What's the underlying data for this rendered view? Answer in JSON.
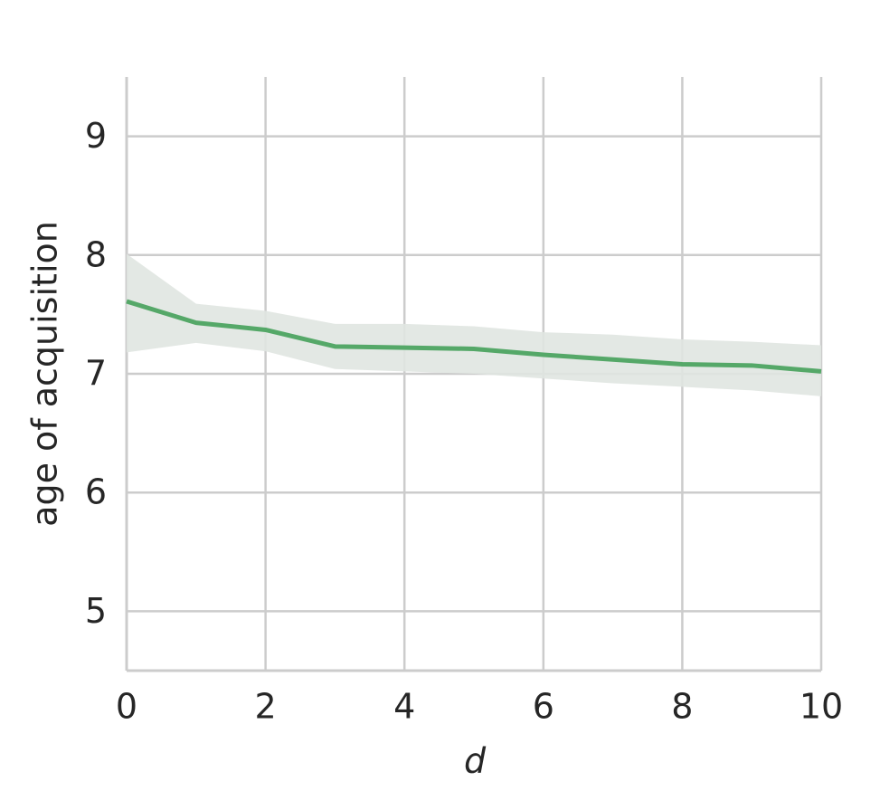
{
  "chart_data": {
    "type": "line",
    "xlabel": "d",
    "ylabel": "age of acquisition",
    "x": [
      0,
      1,
      2,
      3,
      4,
      5,
      6,
      7,
      8,
      9,
      10
    ],
    "values": [
      7.61,
      7.43,
      7.37,
      7.23,
      7.22,
      7.21,
      7.16,
      7.12,
      7.08,
      7.07,
      7.02
    ],
    "band": {
      "upper": [
        8.01,
        7.59,
        7.53,
        7.42,
        7.42,
        7.4,
        7.35,
        7.33,
        7.29,
        7.27,
        7.24
      ],
      "lower": [
        7.18,
        7.26,
        7.19,
        7.04,
        7.02,
        7.0,
        6.96,
        6.92,
        6.89,
        6.86,
        6.81
      ]
    },
    "color": "#55a868",
    "band_color": "#e0e5e1",
    "xlim": [
      0,
      10
    ],
    "xticks": [
      0,
      2,
      4,
      6,
      8,
      10
    ],
    "ylim": [
      4.5,
      9.5
    ],
    "yticks": [
      5,
      6,
      7,
      8,
      9
    ],
    "grid": true
  }
}
